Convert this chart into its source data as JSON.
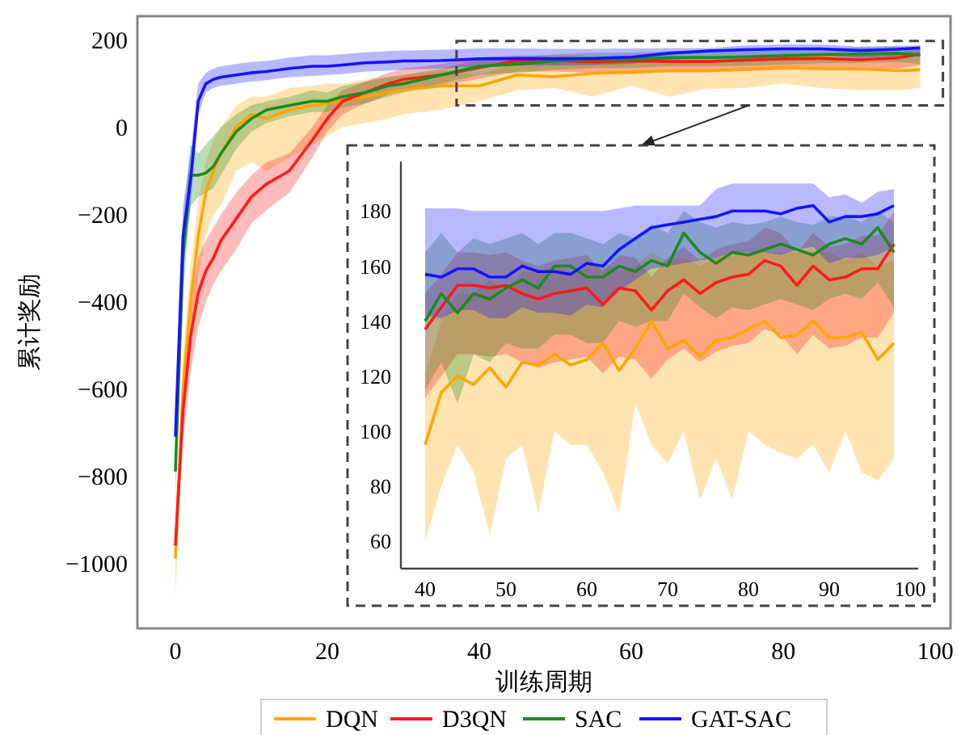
{
  "chart_data": [
    {
      "type": "line",
      "xlabel": "训练周期",
      "ylabel": "累计奖励",
      "legend": "bottom",
      "grid": false,
      "line_style": "solid",
      "marker": "none",
      "x": [
        0,
        1,
        2,
        3,
        4,
        5,
        6,
        8,
        10,
        12,
        15,
        18,
        20,
        22,
        25,
        28,
        30,
        35,
        40,
        45,
        50,
        55,
        60,
        65,
        70,
        75,
        80,
        85,
        90,
        95,
        98
      ],
      "xlim": [
        -5,
        102
      ],
      "ylim": [
        -1150,
        255
      ],
      "xticks": [
        0,
        20,
        40,
        60,
        80,
        100
      ],
      "yticks": [
        {
          "value": -1000,
          "label": "−1000"
        },
        {
          "value": -800,
          "label": "−800"
        },
        {
          "value": -600,
          "label": "−600"
        },
        {
          "value": -400,
          "label": "−400"
        },
        {
          "value": -200,
          "label": "−200"
        },
        0,
        200
      ],
      "series": [
        {
          "name": "DQN",
          "color": "#ffa500",
          "values": [
            -990,
            -600,
            -400,
            -250,
            -150,
            -100,
            -60,
            0,
            30,
            20,
            40,
            50,
            55,
            60,
            70,
            80,
            85,
            95,
            95,
            120,
            116,
            124,
            126,
            130,
            130,
            133,
            137,
            134,
            134,
            130,
            132
          ],
          "lower": [
            -1080,
            -700,
            -500,
            -340,
            -250,
            -200,
            -180,
            -100,
            -80,
            -100,
            -70,
            -40,
            -20,
            0,
            10,
            20,
            30,
            40,
            60,
            85,
            90,
            70,
            95,
            70,
            88,
            90,
            100,
            90,
            85,
            85,
            90
          ],
          "upper": [
            -950,
            -520,
            -320,
            -170,
            -80,
            -30,
            0,
            50,
            70,
            70,
            90,
            95,
            100,
            100,
            110,
            115,
            120,
            130,
            120,
            150,
            150,
            155,
            160,
            162,
            162,
            165,
            165,
            165,
            165,
            165,
            160
          ]
        },
        {
          "name": "D3QN",
          "color": "#ff1a1a",
          "values": [
            -960,
            -650,
            -480,
            -380,
            -330,
            -300,
            -260,
            -210,
            -160,
            -130,
            -100,
            -30,
            20,
            60,
            80,
            100,
            110,
            120,
            137,
            153,
            153,
            150,
            152,
            151,
            151,
            154,
            157,
            158,
            155,
            159,
            168
          ],
          "lower": [
            -1000,
            -720,
            -560,
            -460,
            -400,
            -360,
            -330,
            -280,
            -220,
            -190,
            -150,
            -70,
            -10,
            30,
            55,
            75,
            85,
            95,
            112,
            128,
            128,
            125,
            127,
            126,
            126,
            129,
            132,
            133,
            130,
            134,
            143
          ],
          "upper": [
            -900,
            -580,
            -400,
            -300,
            -260,
            -230,
            -200,
            -150,
            -110,
            -80,
            -60,
            0,
            50,
            85,
            105,
            125,
            135,
            145,
            160,
            165,
            165,
            162,
            164,
            163,
            163,
            166,
            169,
            170,
            167,
            171,
            178
          ]
        },
        {
          "name": "SAC",
          "color": "#1f8a1f",
          "values": [
            -790,
            -300,
            -110,
            -110,
            -105,
            -90,
            -60,
            -10,
            20,
            40,
            50,
            60,
            60,
            70,
            80,
            95,
            100,
            120,
            140,
            145,
            152,
            156,
            156,
            160,
            160,
            161,
            164,
            167,
            168,
            170,
            165
          ],
          "lower": [
            -850,
            -380,
            -180,
            -160,
            -150,
            -140,
            -110,
            -50,
            -10,
            10,
            25,
            35,
            35,
            45,
            55,
            70,
            80,
            100,
            120,
            125,
            132,
            136,
            136,
            140,
            140,
            141,
            144,
            147,
            148,
            150,
            145
          ],
          "upper": [
            -720,
            -220,
            -40,
            -60,
            -40,
            -20,
            0,
            30,
            50,
            60,
            70,
            85,
            80,
            95,
            105,
            115,
            120,
            135,
            155,
            160,
            167,
            171,
            171,
            175,
            175,
            176,
            179,
            182,
            183,
            185,
            180
          ]
        },
        {
          "name": "GAT-SAC",
          "color": "#1414ff",
          "values": [
            -710,
            -250,
            -120,
            60,
            100,
            110,
            115,
            120,
            125,
            128,
            135,
            140,
            140,
            143,
            148,
            150,
            152,
            153,
            157,
            158,
            157,
            158,
            161,
            170,
            175,
            178,
            180,
            180,
            176,
            179,
            182
          ],
          "lower": [
            -760,
            -300,
            -180,
            30,
            80,
            90,
            95,
            100,
            105,
            108,
            115,
            118,
            120,
            122,
            128,
            130,
            132,
            135,
            140,
            142,
            142,
            143,
            146,
            155,
            160,
            163,
            165,
            165,
            160,
            163,
            168
          ],
          "upper": [
            -650,
            -180,
            -60,
            100,
            125,
            135,
            140,
            145,
            150,
            152,
            160,
            165,
            165,
            168,
            172,
            175,
            176,
            178,
            181,
            181,
            180,
            180,
            181,
            182,
            182,
            188,
            190,
            190,
            185,
            187,
            188
          ]
        }
      ]
    },
    {
      "type": "line",
      "grid": false,
      "line_style": "solid",
      "marker": "none",
      "x": [
        40,
        42,
        44,
        46,
        48,
        50,
        52,
        54,
        56,
        58,
        60,
        62,
        64,
        66,
        68,
        70,
        72,
        74,
        76,
        78,
        80,
        82,
        84,
        86,
        88,
        90,
        92,
        94,
        96,
        98
      ],
      "xlim": [
        37,
        101
      ],
      "ylim": [
        50,
        198
      ],
      "xticks": [
        40,
        50,
        60,
        70,
        80,
        90,
        100
      ],
      "yticks": [
        60,
        80,
        100,
        120,
        140,
        160,
        180
      ],
      "series": [
        {
          "color": "#ffa500",
          "values": [
            95,
            114,
            120,
            117,
            123,
            116,
            125,
            124,
            128,
            124,
            126,
            132,
            122,
            130,
            140,
            130,
            133,
            127,
            133,
            134,
            137,
            140,
            134,
            135,
            140,
            134,
            134,
            136,
            126,
            132
          ],
          "lower": [
            60,
            80,
            95,
            85,
            62,
            90,
            95,
            70,
            100,
            95,
            95,
            85,
            70,
            110,
            95,
            88,
            100,
            75,
            90,
            75,
            100,
            95,
            92,
            90,
            95,
            85,
            100,
            85,
            82,
            90
          ],
          "upper": [
            120,
            140,
            150,
            150,
            155,
            150,
            158,
            158,
            160,
            158,
            160,
            162,
            158,
            160,
            165,
            162,
            163,
            160,
            163,
            164,
            165,
            165,
            165,
            165,
            165,
            165,
            162,
            165,
            160,
            162
          ]
        },
        {
          "color": "#ff1a1a",
          "values": [
            137,
            145,
            153,
            153,
            152,
            153,
            150,
            148,
            150,
            151,
            152,
            146,
            152,
            151,
            144,
            151,
            155,
            150,
            154,
            156,
            157,
            162,
            160,
            153,
            160,
            155,
            156,
            159,
            159,
            168
          ],
          "lower": [
            112,
            120,
            128,
            128,
            127,
            128,
            125,
            123,
            125,
            126,
            127,
            121,
            127,
            126,
            119,
            126,
            130,
            125,
            129,
            131,
            132,
            137,
            135,
            128,
            135,
            130,
            131,
            134,
            134,
            143
          ],
          "upper": [
            150,
            157,
            165,
            165,
            164,
            165,
            162,
            160,
            162,
            163,
            164,
            158,
            164,
            163,
            156,
            163,
            167,
            162,
            166,
            168,
            169,
            174,
            172,
            165,
            172,
            167,
            168,
            171,
            171,
            180
          ]
        },
        {
          "color": "#1f8a1f",
          "values": [
            140,
            150,
            143,
            150,
            148,
            152,
            155,
            152,
            160,
            160,
            156,
            156,
            160,
            158,
            162,
            160,
            172,
            165,
            161,
            165,
            164,
            166,
            168,
            166,
            164,
            168,
            170,
            168,
            174,
            165
          ],
          "lower": [
            115,
            125,
            110,
            128,
            125,
            132,
            130,
            130,
            135,
            135,
            132,
            132,
            140,
            138,
            140,
            140,
            150,
            145,
            141,
            145,
            144,
            146,
            148,
            146,
            144,
            148,
            150,
            148,
            154,
            145
          ],
          "upper": [
            165,
            172,
            165,
            170,
            168,
            170,
            172,
            168,
            172,
            172,
            170,
            168,
            172,
            170,
            175,
            172,
            180,
            176,
            174,
            176,
            175,
            176,
            178,
            176,
            175,
            178,
            178,
            176,
            180,
            176
          ]
        },
        {
          "color": "#1414ff",
          "values": [
            157,
            156,
            159,
            159,
            156,
            156,
            160,
            158,
            158,
            157,
            161,
            160,
            166,
            170,
            174,
            175,
            176,
            177,
            178,
            180,
            180,
            180,
            179,
            181,
            182,
            176,
            178,
            178,
            179,
            182
          ],
          "lower": [
            142,
            141,
            144,
            144,
            141,
            141,
            145,
            143,
            143,
            142,
            146,
            145,
            151,
            155,
            159,
            160,
            161,
            162,
            163,
            165,
            165,
            165,
            164,
            166,
            167,
            161,
            163,
            163,
            164,
            167
          ],
          "upper": [
            181,
            181,
            181,
            180,
            180,
            180,
            180,
            180,
            180,
            180,
            180,
            180,
            181,
            182,
            182,
            182,
            182,
            182,
            188,
            190,
            190,
            190,
            190,
            190,
            190,
            185,
            186,
            183,
            187,
            188
          ]
        }
      ]
    }
  ]
}
